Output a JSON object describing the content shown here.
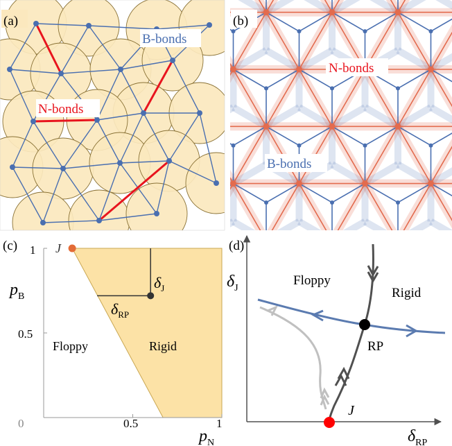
{
  "panels": {
    "a": {
      "tag": "(a)",
      "b_bonds_label": "B-bonds",
      "n_bonds_label": "N-bonds"
    },
    "b": {
      "tag": "(b)",
      "n_bonds_label": "N-bonds",
      "b_bonds_label": "B-bonds"
    },
    "c": {
      "tag": "(c)",
      "j_point_label": "J",
      "delta_j_label": "δ",
      "delta_j_sub": "J",
      "delta_rp_label": "δ",
      "delta_rp_sub": "RP",
      "floppy_label": "Floppy",
      "rigid_label": "Rigid",
      "y_axis_label": "p",
      "y_axis_sub": "B",
      "x_axis_label": "p",
      "x_axis_sub": "N",
      "x_ticks": [
        "0",
        "0.5",
        "1"
      ],
      "y_ticks": [
        "0.5",
        "1"
      ]
    },
    "d": {
      "tag": "(d)",
      "floppy_label": "Floppy",
      "rigid_label": "Rigid",
      "rp_label": "RP",
      "j_label": "J",
      "y_axis_label": "δ",
      "y_axis_sub": "J",
      "x_axis_label": "δ",
      "x_axis_sub": "RP"
    }
  },
  "colors": {
    "disk_fill": "#fbe8be",
    "disk_stroke": "#8a7236",
    "b_bond": "#4a6fb0",
    "n_bond": "#e8141e",
    "n_bond_soft": "#e36b4e",
    "rigid_region": "#fce2a6",
    "j_point": "#e36b36",
    "flow_blue": "#5b7bb0",
    "flow_dark": "#505050",
    "flow_light": "#c0c0c0",
    "rp_point": "#000000",
    "start_point": "#ff0000"
  },
  "chart_data": {
    "type": "area",
    "title": "",
    "xlabel": "pN",
    "ylabel": "pB",
    "xlim": [
      0,
      1
    ],
    "ylim": [
      0,
      1
    ],
    "x_ticks": [
      0,
      0.5,
      1
    ],
    "y_ticks": [
      0.5,
      1
    ],
    "series": [
      {
        "name": "Rigid",
        "boundary": [
          [
            0.16,
            1.0
          ],
          [
            0.67,
            0.0
          ],
          [
            1.0,
            0.0
          ],
          [
            1.0,
            1.0
          ]
        ]
      }
    ],
    "points": [
      {
        "label": "J",
        "x": 0.16,
        "y": 1.0
      },
      {
        "x": 0.6,
        "y": 0.72
      }
    ]
  }
}
